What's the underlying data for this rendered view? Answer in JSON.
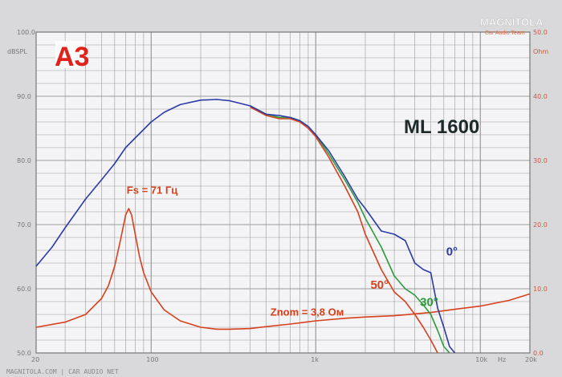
{
  "logo": {
    "text": "A3"
  },
  "watermark": {
    "brand": "MAGNITOLA",
    "sub": "Car Audio Team"
  },
  "footer": {
    "text": "MAGNITOLA.COM | CAR AUDIO NET"
  },
  "colors": {
    "background": "#f4f4f6",
    "grid": "#9a9a9a",
    "on_axis": "#2c3aa8",
    "off_30": "#2e9a3c",
    "off_50": "#d8401c",
    "impedance": "#d8401c",
    "right_axis": "#c85a3a"
  },
  "chart_data": {
    "type": "line",
    "title": "ML 1600",
    "x_scale": "log",
    "xlim": [
      20,
      20000
    ],
    "x_ticks": [
      {
        "value": 20,
        "label": "20"
      },
      {
        "value": 100,
        "label": "100"
      },
      {
        "value": 1000,
        "label": "1k"
      },
      {
        "value": 10000,
        "label": "10k"
      },
      {
        "value": 20000,
        "label": "20k"
      }
    ],
    "x_unit": "Hz",
    "y_left": {
      "unit": "dBSPL",
      "ylim": [
        50,
        100
      ],
      "ticks": [
        "50.0",
        "60.0",
        "70.0",
        "80.0",
        "90.0",
        "100.0"
      ]
    },
    "y_right": {
      "unit": "Ohm",
      "ylim": [
        0,
        50
      ],
      "ticks": [
        "0.0",
        "10.0",
        "20.0",
        "30.0",
        "40.0",
        "50.0"
      ]
    },
    "grid": true,
    "series": [
      {
        "name": "0°",
        "axis": "left",
        "color": "#2c3aa8",
        "x": [
          20,
          25,
          30,
          40,
          50,
          60,
          70,
          80,
          100,
          120,
          150,
          200,
          250,
          300,
          400,
          500,
          600,
          700,
          800,
          900,
          1000,
          1200,
          1500,
          1800,
          2000,
          2500,
          3000,
          3500,
          4000,
          4500,
          5000,
          5500,
          6000,
          6500,
          7000
        ],
        "y": [
          63.5,
          66.5,
          69.5,
          74,
          77,
          79.5,
          82,
          83.5,
          86,
          87.5,
          88.7,
          89.4,
          89.5,
          89.3,
          88.5,
          87.2,
          87,
          86.7,
          86.2,
          85.3,
          84,
          81.5,
          77.5,
          74,
          72.5,
          69,
          68.5,
          67.5,
          64,
          63,
          62.5,
          57,
          54,
          51,
          50
        ]
      },
      {
        "name": "30°",
        "axis": "left",
        "color": "#2e9a3c",
        "x": [
          400,
          500,
          600,
          700,
          800,
          900,
          1000,
          1200,
          1500,
          1800,
          2000,
          2500,
          3000,
          3500,
          4000,
          4500,
          5000,
          5500,
          6000,
          6500
        ],
        "y": [
          88.5,
          87.2,
          86.7,
          86.7,
          86.2,
          85.3,
          84,
          81,
          77,
          73.5,
          71,
          66.5,
          62,
          60,
          59,
          57.5,
          56,
          53.5,
          51,
          50
        ]
      },
      {
        "name": "50°",
        "axis": "left",
        "color": "#d8401c",
        "x": [
          400,
          500,
          600,
          700,
          800,
          900,
          1000,
          1200,
          1500,
          1800,
          2000,
          2500,
          3000,
          3500,
          4000,
          4500,
          5000,
          5500
        ],
        "y": [
          88.3,
          87,
          86.5,
          86.5,
          86,
          85,
          83.7,
          80.5,
          76,
          72,
          68.5,
          63,
          59.5,
          58,
          56,
          54,
          52,
          50
        ]
      },
      {
        "name": "Impedance",
        "axis": "right",
        "color": "#d8401c",
        "x": [
          20,
          30,
          40,
          50,
          55,
          60,
          65,
          70,
          73,
          76,
          80,
          85,
          90,
          100,
          120,
          150,
          200,
          250,
          300,
          400,
          500,
          700,
          1000,
          1500,
          2000,
          3000,
          5000,
          7000,
          10000,
          15000,
          20000
        ],
        "y": [
          4,
          4.8,
          6,
          8.5,
          10.5,
          13.5,
          17.5,
          21.5,
          22.5,
          21.5,
          18.5,
          15,
          12.5,
          9.5,
          6.7,
          5,
          4,
          3.7,
          3.7,
          3.8,
          4.1,
          4.5,
          5,
          5.4,
          5.6,
          5.8,
          6.3,
          6.8,
          7.3,
          8.2,
          9.2
        ]
      }
    ],
    "annotations": [
      {
        "text": "Fs = 71 Гц",
        "x": 71,
        "y": 74.8,
        "color": "#d8401c"
      },
      {
        "text": "Znom = 3,8 Ом",
        "x": 530,
        "y": 55.8,
        "color": "#d8401c"
      },
      {
        "text": "0°",
        "x": 6200,
        "y": 65.2,
        "color": "#2c3aa8"
      },
      {
        "text": "30°",
        "x": 4300,
        "y": 57.3,
        "color": "#2e9a3c"
      },
      {
        "text": "50°",
        "x": 2150,
        "y": 60.0,
        "color": "#d8401c"
      }
    ]
  }
}
